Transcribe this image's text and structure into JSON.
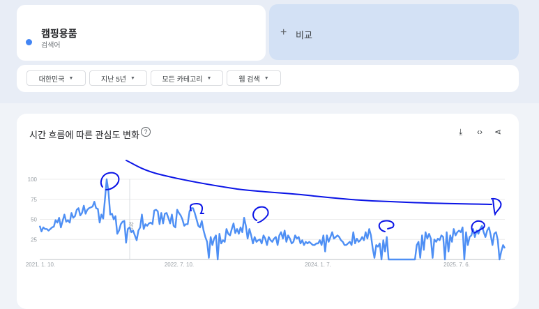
{
  "term": {
    "name": "캠핑용품",
    "type": "검색어",
    "color": "#4285f4"
  },
  "compare": {
    "label": "비교",
    "icon": "plus-icon"
  },
  "filters": [
    {
      "label": "대한민국"
    },
    {
      "label": "지난 5년"
    },
    {
      "label": "모든 카테고리"
    },
    {
      "label": "웹 검색"
    }
  ],
  "chart_section": {
    "title": "시간 흐름에 따른 관심도 변화",
    "icons": [
      "help-icon",
      "download-icon",
      "embed-icon",
      "share-icon"
    ]
  },
  "chart_data": {
    "type": "line",
    "title": "",
    "xlabel": "",
    "ylabel": "",
    "ylim": [
      0,
      100
    ],
    "yticks": [
      25,
      50,
      75,
      100
    ],
    "x_tick_labels": [
      "2021. 1. 10.",
      "2022. 7. 10.",
      "2024. 1. 7.",
      "2025. 7. 6."
    ],
    "note_marker": {
      "label": "참고"
    },
    "grid": true,
    "series_color": "#4e8ff4",
    "annotation_color": "#0a14e6",
    "series": [
      {
        "values": [
          42,
          35,
          40,
          38,
          38,
          36,
          38,
          40,
          41,
          49,
          46,
          52,
          40,
          48,
          56,
          47,
          49,
          46,
          58,
          52,
          54,
          62,
          64,
          55,
          58,
          67,
          57,
          62,
          64,
          65,
          66,
          72,
          64,
          63,
          46,
          56,
          51,
          75,
          100,
          85,
          56,
          57,
          50,
          54,
          32,
          36,
          44,
          47,
          48,
          21,
          38,
          40,
          34,
          36,
          30,
          24,
          36,
          40,
          56,
          38,
          44,
          42,
          45,
          46,
          44,
          61,
          62,
          60,
          44,
          58,
          45,
          57,
          58,
          52,
          45,
          56,
          42,
          40,
          62,
          58,
          55,
          50,
          42,
          44,
          44,
          60,
          64,
          64,
          58,
          50,
          42,
          40,
          48,
          36,
          28,
          22,
          2,
          28,
          18,
          26,
          30,
          0,
          32,
          20,
          24,
          22,
          38,
          32,
          30,
          38,
          45,
          33,
          38,
          32,
          40,
          34,
          52,
          42,
          26,
          38,
          30,
          20,
          28,
          22,
          24,
          25,
          20,
          30,
          26,
          18,
          28,
          24,
          22,
          26,
          28,
          18,
          30,
          34,
          26,
          36,
          22,
          30,
          26,
          20,
          22,
          30,
          26,
          28,
          20,
          24,
          18,
          22,
          20,
          22,
          20,
          18,
          18,
          20,
          20,
          24,
          18,
          30,
          10,
          30,
          22,
          28,
          34,
          26,
          28,
          30,
          28,
          24,
          22,
          18,
          18,
          20,
          22,
          18,
          34,
          20,
          26,
          22,
          24,
          28,
          24,
          34,
          26,
          38,
          30,
          14,
          2,
          18,
          16,
          20,
          0,
          24,
          10,
          28,
          0,
          0,
          0,
          0,
          0,
          0,
          0,
          0,
          0,
          0,
          0,
          0,
          0,
          0,
          0,
          0,
          18,
          22,
          2,
          30,
          12,
          34,
          26,
          32,
          26,
          2,
          25,
          22,
          26,
          24,
          30,
          28,
          0,
          34,
          10,
          30,
          22,
          38,
          30,
          34,
          36,
          34,
          40,
          0,
          34,
          18,
          28,
          30,
          38,
          28,
          36,
          32,
          38,
          42,
          34,
          28,
          36,
          40,
          30,
          18,
          32,
          34,
          24,
          0,
          10,
          18,
          14
        ]
      }
    ]
  }
}
